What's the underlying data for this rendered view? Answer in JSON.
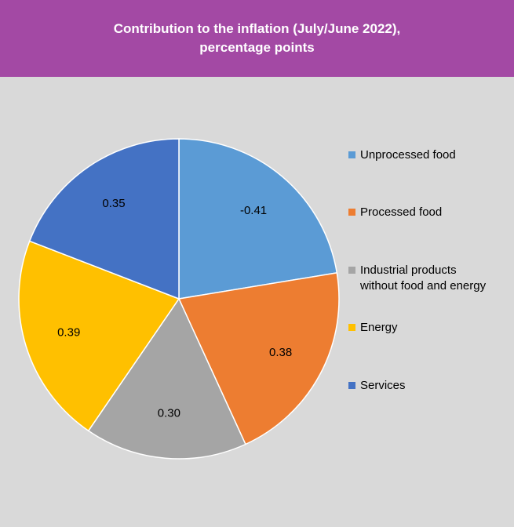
{
  "header": {
    "title_line1": "Contribution to the inflation (July/June 2022),",
    "title_line2": "percentage points"
  },
  "chart_data": {
    "type": "pie",
    "title": "Contribution to the inflation (July/June 2022), percentage points",
    "legend_position": "right",
    "slices": [
      {
        "name": "Unprocessed food",
        "value": -0.41,
        "label": "-0.41",
        "color": "#5b9bd5"
      },
      {
        "name": "Processed food",
        "value": 0.38,
        "label": "0.38",
        "color": "#ed7d31"
      },
      {
        "name": "Industrial products without food and energy",
        "value": 0.3,
        "label": "0.30",
        "color": "#a5a5a5"
      },
      {
        "name": "Energy",
        "value": 0.39,
        "label": "0.39",
        "color": "#ffc000"
      },
      {
        "name": "Services",
        "value": 0.35,
        "label": "0.35",
        "color": "#4472c4"
      }
    ]
  },
  "legend": {
    "items": [
      {
        "line1": "Unprocessed food",
        "line2": ""
      },
      {
        "line1": "Processed food",
        "line2": ""
      },
      {
        "line1": "Industrial products",
        "line2": "without food and energy"
      },
      {
        "line1": "Energy",
        "line2": ""
      },
      {
        "line1": "Services",
        "line2": ""
      }
    ]
  }
}
